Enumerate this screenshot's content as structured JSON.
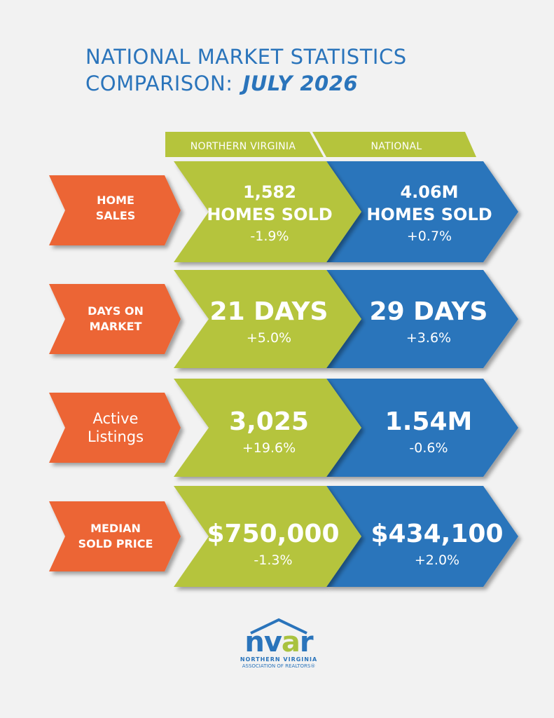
{
  "title": {
    "line1": "NATIONAL MARKET STATISTICS",
    "line2": "COMPARISON:",
    "date": "JULY 2026"
  },
  "columns": {
    "left": "NORTHERN VIRGINIA",
    "right": "NATIONAL"
  },
  "colors": {
    "orange": "#ec6534",
    "green": "#b5c43c",
    "blue": "#2a74bb",
    "title_blue": "#2a74bb"
  },
  "rows": [
    {
      "label_l1": "HOME",
      "label_l2": "SALES",
      "nova_main_l1": "1,582",
      "nova_main_l2": "HOMES SOLD",
      "nova_change": "-1.9%",
      "national_main_l1": "4.06M",
      "national_main_l2": "HOMES SOLD",
      "national_change": "+0.7%"
    },
    {
      "label_l1": "DAYS ON",
      "label_l2": "MARKET",
      "nova_main": "21 DAYS",
      "nova_change": "+5.0%",
      "national_main": "29 DAYS",
      "national_change": "+3.6%"
    },
    {
      "label_l1": "Active",
      "label_l2": "Listings",
      "nova_main": "3,025",
      "nova_change": "+19.6%",
      "national_main": "1.54M",
      "national_change": "-0.6%"
    },
    {
      "label_l1": "MEDIAN",
      "label_l2": "SOLD PRICE",
      "nova_main": "$750,000",
      "nova_change": "-1.3%",
      "national_main": "$434,100",
      "national_change": "+2.0%"
    }
  ],
  "logo": {
    "word_n": "n",
    "word_v": "v",
    "word_a": "a",
    "word_r": "r",
    "line1": "NORTHERN VIRGINIA",
    "line2": "ASSOCIATION OF REALTORS®"
  }
}
